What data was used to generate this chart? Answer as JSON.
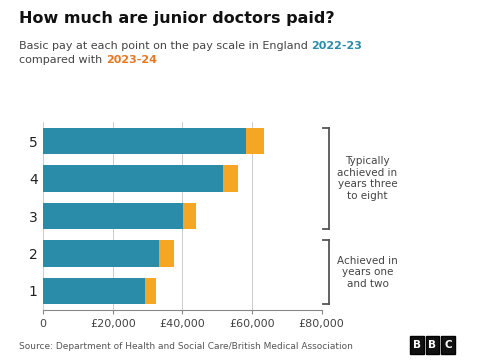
{
  "title": "How much are junior doctors paid?",
  "subtitle_line1_plain": "Basic pay at each point on the pay scale in England ",
  "subtitle_line1_colored": "2022-23",
  "subtitle_line2_plain": "compared with ",
  "subtitle_line2_colored": "2023-24",
  "categories": [
    "1",
    "2",
    "3",
    "4",
    "5"
  ],
  "values_2022": [
    29384,
    33345,
    40257,
    51750,
    58398
  ],
  "values_2023_increase": [
    3047,
    4245,
    3518,
    4243,
    5144
  ],
  "color_teal": "#2b8caa",
  "color_orange": "#f5a623",
  "color_year1": "#2b8caa",
  "color_year2": "#e87722",
  "xlim": [
    0,
    80000
  ],
  "xticks": [
    0,
    20000,
    40000,
    60000,
    80000
  ],
  "source_text": "Source: Department of Health and Social Care/British Medical Association",
  "bg_color": "#ffffff",
  "bracket1_label": "Typically\nachieved in\nyears three\nto eight",
  "bracket2_label": "Achieved in\nyears one\nand two"
}
